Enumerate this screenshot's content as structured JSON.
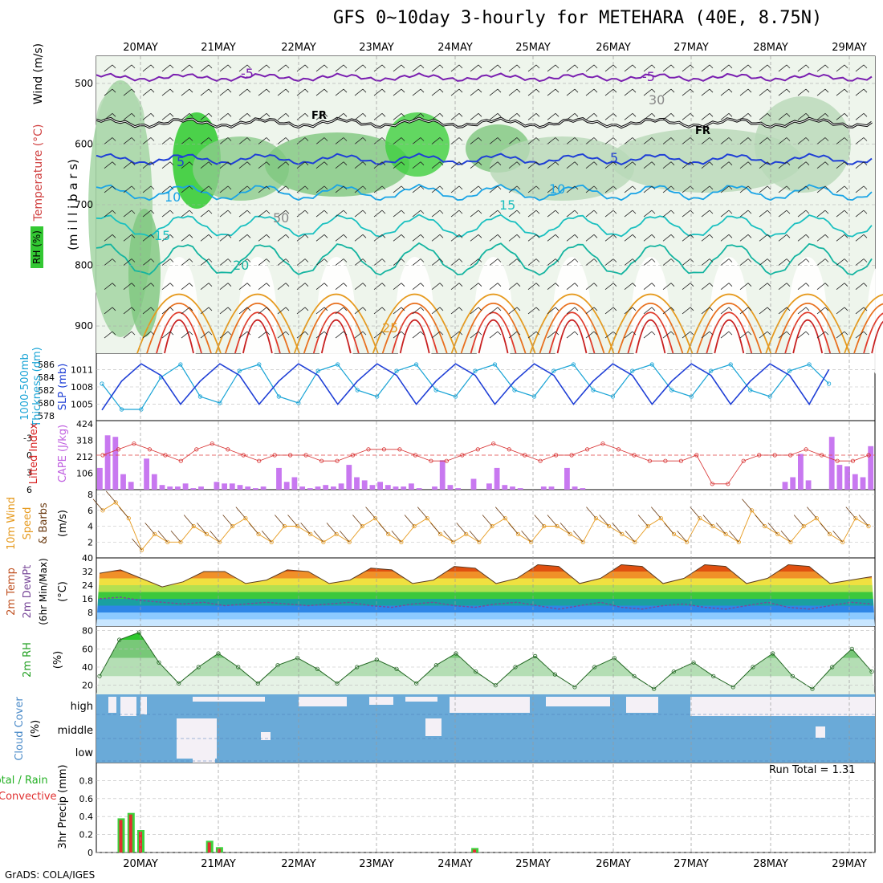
{
  "title": "GFS 0~10day 3-hourly for METEHARA (40E, 8.75N)",
  "footer": "GrADS: COLA/IGES",
  "run_total": "Run Total = 1.31",
  "days": [
    "20MAY",
    "21MAY",
    "22MAY",
    "23MAY",
    "24MAY",
    "25MAY",
    "26MAY",
    "27MAY",
    "28MAY",
    "29MAY"
  ],
  "colors": {
    "purple": "#7a1fb0",
    "black": "#000000",
    "blue": "#1f3fd6",
    "cyan": "#19a4d6",
    "teal": "#14b4a0",
    "orange": "#e69a1e",
    "red": "#d22020",
    "rh_green": "#55c855",
    "cloud": "#6aaad8",
    "cape_bar": "#c878f0",
    "precip_green": "#3cd23c",
    "precip_red": "#e03030"
  },
  "panels": {
    "upper": {
      "ylabel_line1": "Temperature (°C)",
      "ylabel_wind": "Wind (m/s)",
      "ylabel_mb": "(m i l l i b a r s)",
      "rh_label": "RH (%)",
      "ticks": [
        500,
        600,
        700,
        800,
        900
      ],
      "iso_labels": [
        "-5",
        "FR",
        "5",
        "10",
        "15",
        "20",
        "25",
        "-5",
        "FR",
        "5",
        "10",
        "15",
        "30",
        "50"
      ]
    },
    "thickness": {
      "label_a": "1000-500mb",
      "label_b": "Thickness (dm)",
      "label_c": "SLP (mb)",
      "ticks_left": [
        578,
        580,
        582,
        584,
        586
      ],
      "ticks_right": [
        1005,
        1008,
        1011
      ]
    },
    "cape": {
      "label_a": "Lifted Index",
      "label_b": "CAPE (J/kg)",
      "ticks_left": [
        -3,
        0,
        3,
        6
      ],
      "ticks_right": [
        424,
        318,
        212,
        106
      ]
    },
    "wind10": {
      "label_a": "10m Wind",
      "label_b": "Speed",
      "label_c": "& Barbs",
      "label_d": "(m/s)",
      "ticks": [
        2,
        4,
        6,
        8
      ]
    },
    "temp2m": {
      "label_a": "2m Temp",
      "label_b": "2m DewPt",
      "label_c": "(6hr Min/Max)",
      "label_d": "(°C)",
      "ticks": [
        8,
        16,
        24,
        32,
        40
      ]
    },
    "rh2m": {
      "label_a": "2m RH",
      "label_b": "(%)",
      "ticks": [
        20,
        40,
        60,
        80
      ]
    },
    "cloud": {
      "label_a": "Cloud Cover",
      "label_b": "(%)",
      "rows": [
        "high",
        "middle",
        "low"
      ]
    },
    "precip": {
      "label_a": "Total / Rain",
      "label_b": "Convective",
      "label_c": "3hr Precip (mm)",
      "ticks": [
        "0",
        "0.2",
        "0.4",
        "0.6",
        "0.8"
      ]
    }
  },
  "chart_data": [
    {
      "type": "line",
      "name": "sea level pressure",
      "ylabel": "SLP (mb)",
      "ylim": [
        1003,
        1013
      ],
      "x_days": [
        0,
        0.25,
        0.5,
        0.75,
        1,
        1.25,
        1.5,
        1.75,
        2,
        2.25,
        2.5,
        2.75,
        3,
        3.25,
        3.5,
        3.75,
        4,
        4.25,
        4.5,
        4.75,
        5,
        5.25,
        5.5,
        5.75,
        6,
        6.25,
        6.5,
        6.75,
        7,
        7.25,
        7.5,
        7.75,
        8,
        8.25,
        8.5,
        8.75,
        9,
        9.25
      ],
      "values": [
        1004,
        1009,
        1012,
        1010,
        1005,
        1009,
        1012,
        1010,
        1005,
        1009,
        1012,
        1010,
        1005,
        1009,
        1012,
        1010,
        1005,
        1009,
        1012,
        1010,
        1005,
        1009,
        1012,
        1010,
        1005,
        1009,
        1012,
        1010,
        1005,
        1009,
        1012,
        1010,
        1005,
        1009,
        1012,
        1010,
        1005,
        1011
      ]
    },
    {
      "type": "line",
      "name": "1000-500mb thickness",
      "ylabel": "Thickness (dm)",
      "ylim": [
        578,
        587
      ],
      "x_days": [
        0,
        0.25,
        0.5,
        0.75,
        1,
        1.25,
        1.5,
        1.75,
        2,
        2.25,
        2.5,
        2.75,
        3,
        3.25,
        3.5,
        3.75,
        4,
        4.25,
        4.5,
        4.75,
        5,
        5.25,
        5.5,
        5.75,
        6,
        6.25,
        6.5,
        6.75,
        7,
        7.25,
        7.5,
        7.75,
        8,
        8.25,
        8.5,
        8.75,
        9,
        9.25
      ],
      "values": [
        583,
        579,
        579,
        584,
        586,
        581,
        580,
        585,
        586,
        581,
        580,
        585,
        586,
        582,
        581,
        585,
        586,
        582,
        581,
        585,
        586,
        582,
        581,
        585,
        586,
        582,
        581,
        585,
        586,
        582,
        581,
        585,
        586,
        582,
        581,
        585,
        586,
        583
      ]
    },
    {
      "type": "bar",
      "name": "CAPE",
      "ylabel": "CAPE (J/kg)",
      "ylim": [
        0,
        424
      ],
      "values": [
        140,
        350,
        340,
        100,
        50,
        0,
        200,
        100,
        30,
        20,
        20,
        40,
        10,
        20,
        0,
        50,
        40,
        40,
        30,
        20,
        10,
        20,
        0,
        140,
        50,
        80,
        20,
        10,
        20,
        30,
        20,
        40,
        160,
        80,
        60,
        30,
        50,
        30,
        20,
        20,
        40,
        10,
        0,
        20,
        190,
        30,
        10,
        0,
        70,
        0,
        40,
        140,
        30,
        20,
        10,
        0,
        0,
        20,
        20,
        0,
        140,
        20,
        10,
        0,
        0,
        0,
        0,
        0,
        0,
        0,
        0,
        0,
        0,
        0,
        0,
        0,
        0,
        0,
        0,
        0,
        0,
        0,
        0,
        0,
        0,
        0,
        0,
        0,
        50,
        80,
        230,
        60,
        0,
        0,
        340,
        160,
        150,
        100,
        80,
        280
      ]
    },
    {
      "type": "line",
      "name": "lifted index",
      "ylabel": "Lifted Index",
      "ylim": [
        -6,
        6
      ],
      "values": [
        0,
        -1,
        -2,
        -1,
        0,
        1,
        -1,
        -2,
        -1,
        0,
        1,
        0,
        0,
        0,
        1,
        1,
        0,
        -1,
        -1,
        -1,
        0,
        1,
        1,
        0,
        -1,
        -2,
        -1,
        0,
        1,
        0,
        0,
        -1,
        -2,
        -1,
        0,
        1,
        1,
        1,
        0,
        5,
        5,
        1,
        0,
        0,
        0,
        -1,
        0,
        1,
        1,
        0
      ]
    },
    {
      "type": "line",
      "name": "10m wind speed",
      "ylabel": "(m/s)",
      "ylim": [
        0,
        8
      ],
      "values": [
        6,
        7,
        5,
        1,
        3,
        2,
        2,
        4,
        3,
        2,
        4,
        5,
        3,
        2,
        4,
        4,
        3,
        2,
        3,
        2,
        4,
        5,
        3,
        2,
        4,
        5,
        3,
        2,
        3,
        2,
        4,
        5,
        3,
        2,
        4,
        4,
        3,
        2,
        5,
        4,
        3,
        2,
        4,
        5,
        3,
        2,
        5,
        4,
        3,
        2,
        6,
        4,
        3,
        2,
        4,
        5,
        3,
        2,
        5,
        4
      ]
    },
    {
      "type": "area",
      "name": "2m temperature",
      "ylabel": "(°C)",
      "ylim": [
        0,
        40
      ],
      "values": [
        31,
        33,
        28,
        23,
        26,
        32,
        32,
        25,
        27,
        33,
        32,
        25,
        27,
        34,
        33,
        25,
        27,
        35,
        34,
        25,
        28,
        36,
        35,
        25,
        28,
        36,
        35,
        25,
        28,
        36,
        35,
        25,
        28,
        36,
        35,
        25,
        27,
        29
      ]
    },
    {
      "type": "line",
      "name": "2m dew point",
      "ylabel": "(°C)",
      "ylim": [
        0,
        40
      ],
      "values": [
        16,
        17,
        15,
        14,
        13,
        14,
        12,
        13,
        14,
        13,
        12,
        13,
        14,
        12,
        11,
        13,
        14,
        12,
        11,
        13,
        14,
        12,
        10,
        12,
        14,
        11,
        10,
        12,
        13,
        11,
        10,
        12,
        14,
        11,
        10,
        12,
        14,
        13
      ]
    },
    {
      "type": "area",
      "name": "2m RH",
      "ylabel": "(%)",
      "ylim": [
        10,
        85
      ],
      "values": [
        30,
        70,
        78,
        45,
        22,
        40,
        55,
        40,
        22,
        42,
        50,
        38,
        22,
        40,
        48,
        38,
        22,
        42,
        55,
        35,
        20,
        40,
        52,
        32,
        18,
        40,
        50,
        30,
        16,
        35,
        45,
        30,
        18,
        40,
        55,
        30,
        16,
        40,
        60,
        35
      ]
    },
    {
      "type": "bar",
      "name": "3hr precip total",
      "ylabel": "3hr Precip (mm)",
      "ylim": [
        0,
        1
      ],
      "x_days": [
        -0.25,
        -0.125,
        0,
        0.875,
        1.0,
        4.25
      ],
      "values": [
        0.38,
        0.44,
        0.25,
        0.13,
        0.06,
        0.05
      ]
    }
  ]
}
